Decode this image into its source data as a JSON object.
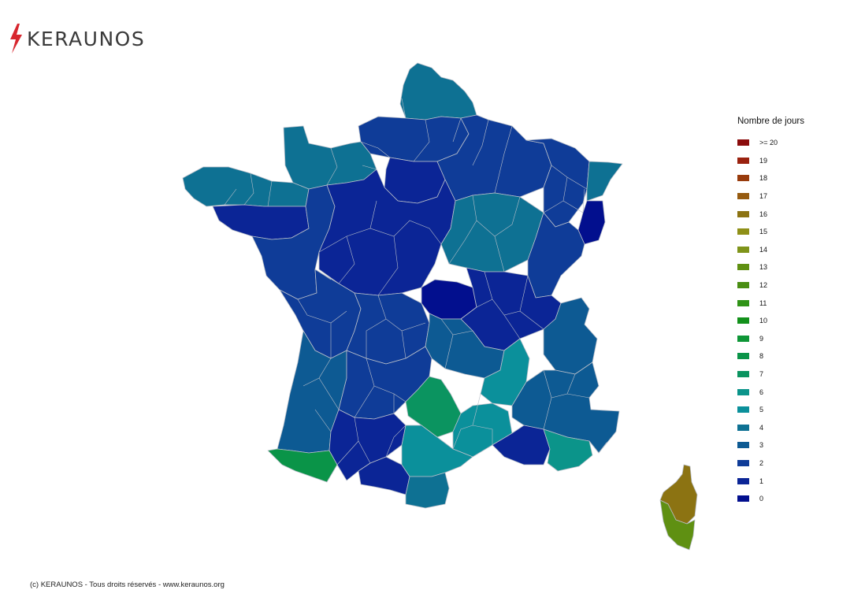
{
  "brand": {
    "name": "KERAUNOS",
    "bolt_color": "#d7262e"
  },
  "legend": {
    "title": "Nombre de jours",
    "items": [
      {
        "label": ">= 20",
        "color": "#8b0c0c"
      },
      {
        "label": "19",
        "color": "#9a220f"
      },
      {
        "label": "18",
        "color": "#983b0c"
      },
      {
        "label": "17",
        "color": "#965b10"
      },
      {
        "label": "16",
        "color": "#8c7312"
      },
      {
        "label": "15",
        "color": "#8f9018"
      },
      {
        "label": "14",
        "color": "#7f941a"
      },
      {
        "label": "13",
        "color": "#5f9012"
      },
      {
        "label": "12",
        "color": "#4a8e13"
      },
      {
        "label": "11",
        "color": "#2f9316"
      },
      {
        "label": "10",
        "color": "#13911b"
      },
      {
        "label": "9",
        "color": "#0e9637"
      },
      {
        "label": "8",
        "color": "#0a9448"
      },
      {
        "label": "7",
        "color": "#0b9460"
      },
      {
        "label": "6",
        "color": "#0b948a"
      },
      {
        "label": "5",
        "color": "#0b909b"
      },
      {
        "label": "4",
        "color": "#0e7193"
      },
      {
        "label": "3",
        "color": "#0d5a93"
      },
      {
        "label": "2",
        "color": "#0f3c98"
      },
      {
        "label": "1",
        "color": "#0b2596"
      },
      {
        "label": "0",
        "color": "#020f8e"
      }
    ]
  },
  "regions": [
    {
      "name": "nord",
      "value": 4
    },
    {
      "name": "picardie",
      "value": 2
    },
    {
      "name": "normandie",
      "value": 4
    },
    {
      "name": "bretagne-west",
      "value": 4
    },
    {
      "name": "bretagne-south",
      "value": 1
    },
    {
      "name": "ile-de-france",
      "value": 1
    },
    {
      "name": "champagne",
      "value": 2
    },
    {
      "name": "lorraine",
      "value": 2
    },
    {
      "name": "alsace-north",
      "value": 4
    },
    {
      "name": "alsace-south",
      "value": 0
    },
    {
      "name": "pays-de-la-loire",
      "value": 2
    },
    {
      "name": "centre",
      "value": 1
    },
    {
      "name": "bourgogne",
      "value": 4
    },
    {
      "name": "franche-comte",
      "value": 2
    },
    {
      "name": "poitou",
      "value": 2
    },
    {
      "name": "limousin",
      "value": 2
    },
    {
      "name": "allier",
      "value": 0
    },
    {
      "name": "rhone",
      "value": 1
    },
    {
      "name": "alpes-north",
      "value": 3
    },
    {
      "name": "auvergne",
      "value": 3
    },
    {
      "name": "aquitaine",
      "value": 3
    },
    {
      "name": "midi-north",
      "value": 2
    },
    {
      "name": "aveyron",
      "value": 7
    },
    {
      "name": "ardeche-lozere",
      "value": 5
    },
    {
      "name": "drome",
      "value": 5
    },
    {
      "name": "alpes-south",
      "value": 3
    },
    {
      "name": "pyrenees-atlantiques",
      "value": 8
    },
    {
      "name": "gers-toulouse",
      "value": 1
    },
    {
      "name": "ariege",
      "value": 1
    },
    {
      "name": "aude-herault",
      "value": 5
    },
    {
      "name": "pyrenees-orientales",
      "value": 4
    },
    {
      "name": "bouches-du-rhone",
      "value": 1
    },
    {
      "name": "var",
      "value": 6
    },
    {
      "name": "alpes-maritimes",
      "value": 3
    },
    {
      "name": "haute-corse",
      "value": 16
    },
    {
      "name": "corse-du-sud",
      "value": 13
    }
  ],
  "copyright": "(c) KERAUNOS - Tous droits réservés - www.keraunos.org"
}
